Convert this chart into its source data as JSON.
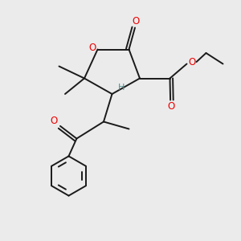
{
  "bg_color": "#ebebeb",
  "bond_color": "#1a1a1a",
  "oxygen_color": "#ee0000",
  "h_color": "#4a9090",
  "line_width": 1.4,
  "font_size": 8.5,
  "xlim": [
    0,
    10
  ],
  "ylim": [
    0,
    10
  ]
}
